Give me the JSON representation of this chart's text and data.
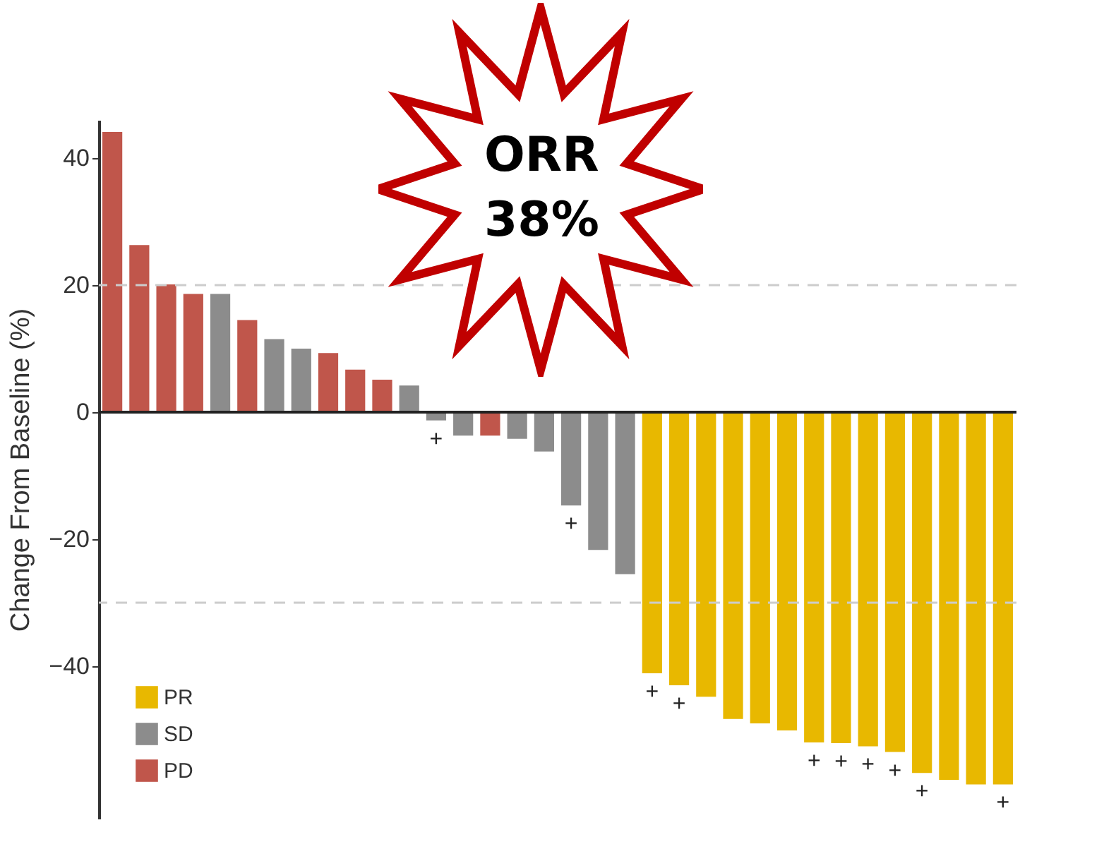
{
  "chart_data": {
    "type": "bar",
    "ylabel": "Change From Baseline (%)",
    "categories": [
      null,
      null,
      null,
      null,
      null,
      null,
      null,
      null,
      null,
      null,
      null,
      null,
      null,
      null,
      null,
      null,
      null,
      null,
      null,
      null,
      null,
      null,
      null,
      null,
      null,
      null,
      null,
      null,
      null,
      null,
      null,
      null,
      null,
      null
    ],
    "series": [
      {
        "name": "PR",
        "color": "#e8b800",
        "values": [
          null,
          null,
          null,
          null,
          null,
          null,
          null,
          null,
          null,
          null,
          null,
          null,
          null,
          null,
          null,
          null,
          null,
          null,
          null,
          null,
          -41.1,
          -43.0,
          -44.8,
          -48.3,
          -49.0,
          -50.1,
          -52.0,
          -52.1,
          -52.6,
          -53.5,
          -56.8,
          -57.9,
          -58.6,
          -58.6
        ],
        "value_labels": [
          null,
          null,
          null,
          null,
          null,
          null,
          null,
          null,
          null,
          null,
          null,
          null,
          null,
          null,
          null,
          null,
          null,
          null,
          null,
          null,
          "+",
          "+",
          null,
          null,
          null,
          null,
          "+",
          "+",
          "+",
          "+",
          "+",
          null,
          null,
          "+"
        ]
      },
      {
        "name": "SD",
        "color": "#8c8c8c",
        "values": [
          null,
          null,
          null,
          null,
          18.6,
          null,
          11.5,
          10.0,
          null,
          null,
          null,
          4.2,
          -1.3,
          -3.7,
          null,
          -4.2,
          -6.2,
          -14.7,
          -21.7,
          -25.5,
          null,
          null,
          null,
          null,
          null,
          null,
          null,
          null,
          null,
          null,
          null,
          null,
          null,
          null
        ],
        "value_labels": [
          null,
          null,
          null,
          null,
          null,
          null,
          null,
          null,
          null,
          null,
          null,
          null,
          "+",
          null,
          null,
          null,
          null,
          "+",
          null,
          null,
          null,
          null,
          null,
          null,
          null,
          null,
          null,
          null,
          null,
          null,
          null,
          null,
          null,
          null
        ]
      },
      {
        "name": "PD",
        "color": "#c0564b",
        "values": [
          44.1,
          26.3,
          20.1,
          18.6,
          null,
          14.5,
          null,
          null,
          9.3,
          6.7,
          5.1,
          null,
          null,
          null,
          -3.7,
          null,
          null,
          null,
          null,
          null,
          null,
          null,
          null,
          null,
          null,
          null,
          null,
          null,
          null,
          null,
          null,
          null,
          null,
          null
        ]
      }
    ],
    "ylim": [
      -64,
      46
    ],
    "yticks": [
      40,
      20,
      0,
      -20,
      -40
    ],
    "ref_lines": [
      {
        "axis": "y",
        "value": 20,
        "color": "#cccccc",
        "line_style": "dashed"
      },
      {
        "axis": "y",
        "value": -30,
        "color": "#cccccc",
        "line_style": "dashed"
      },
      {
        "axis": "y",
        "value": 0,
        "color": "#222222",
        "line_style": "solid"
      }
    ],
    "legend": "bottom left",
    "annotations": [
      "ORR 38%"
    ]
  }
}
